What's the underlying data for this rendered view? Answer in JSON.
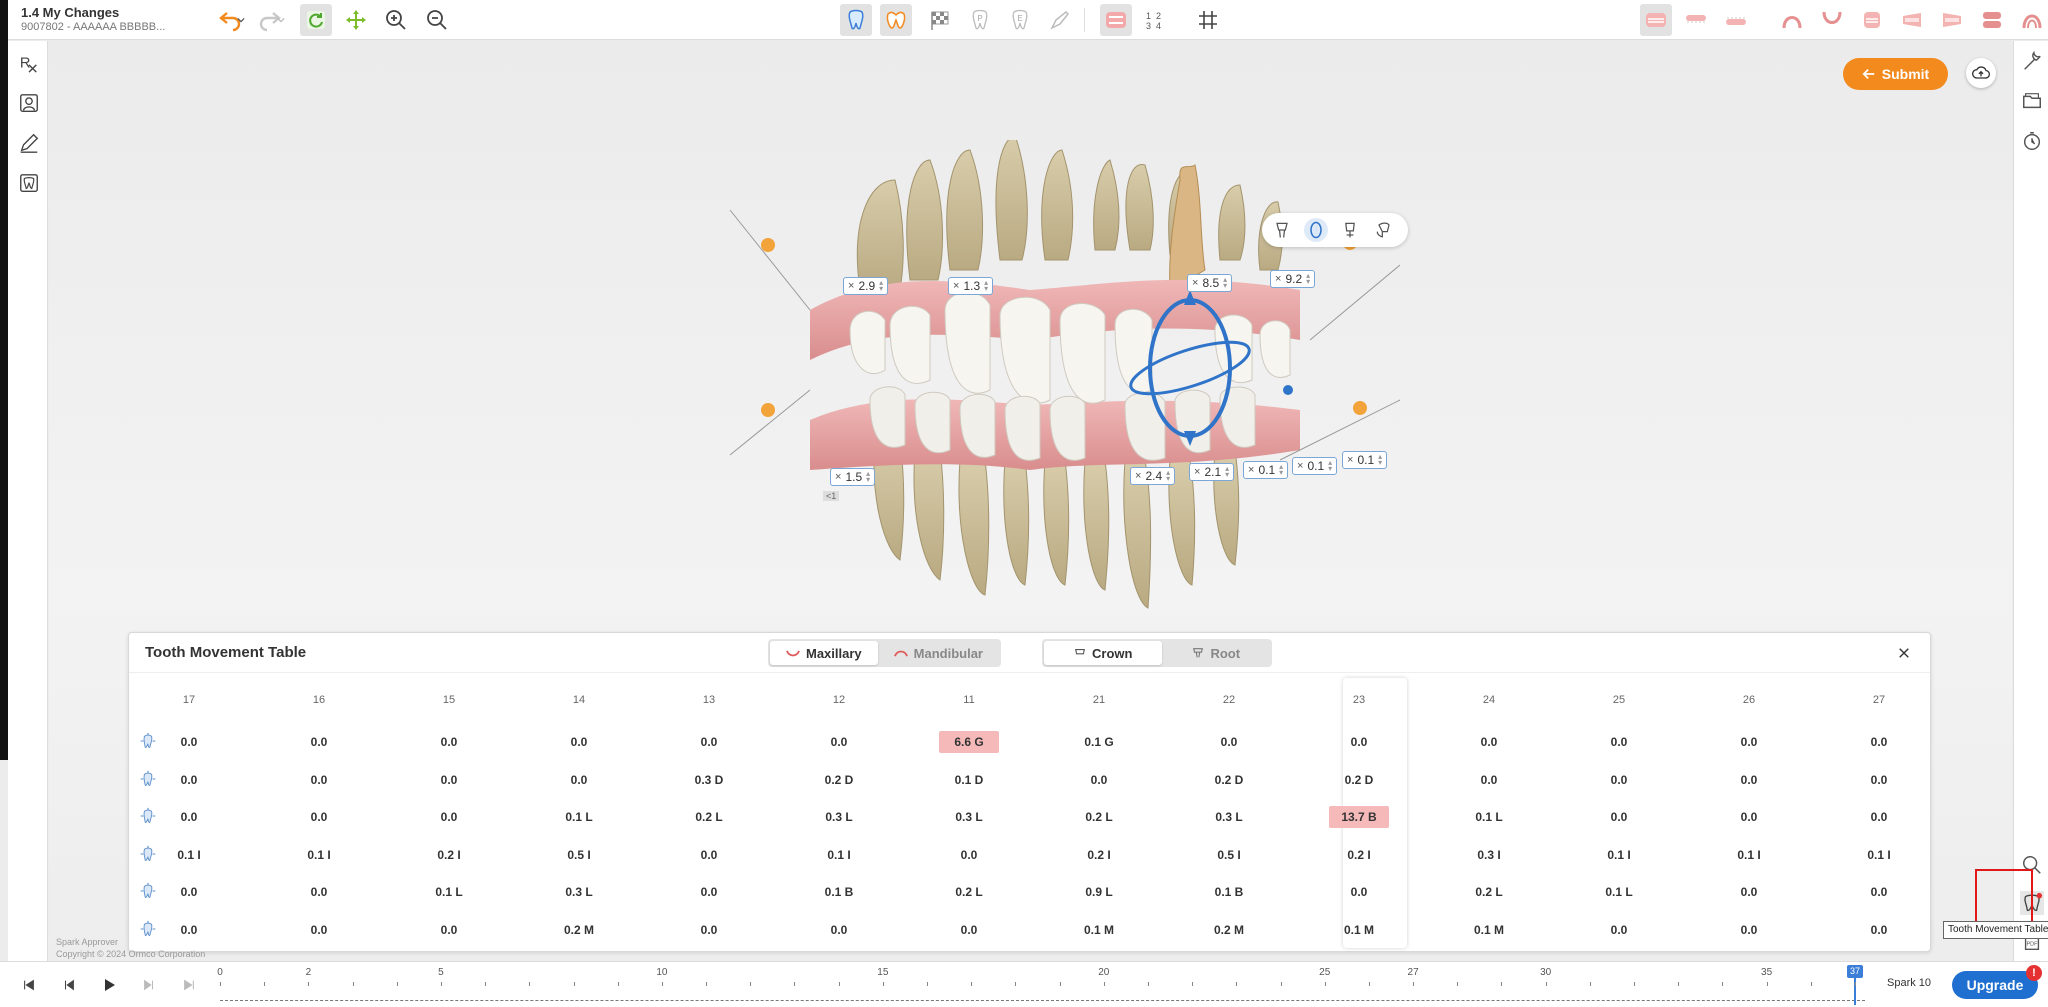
{
  "header": {
    "title": "1.4 My Changes",
    "subtitle": "9007802 - AAAAAA BBBBB..."
  },
  "icons": {
    "undo": "undo-icon",
    "redo": "redo-icon",
    "refresh": "refresh-icon",
    "move": "move-icon",
    "zoom_in": "zoom-in-icon",
    "zoom_out": "zoom-out-icon"
  },
  "viewport": {
    "submit_label": "Submit",
    "measurements": [
      "2.9",
      "1.3",
      "8.5",
      "9.2",
      "1.5",
      "2.4",
      "2.1",
      "0.1",
      "0.1",
      "0.1"
    ],
    "small_label": "<1"
  },
  "table": {
    "title": "Tooth Movement Table",
    "tabs_jaw": [
      "Maxillary",
      "Mandibular"
    ],
    "tabs_part": [
      "Crown",
      "Root"
    ],
    "active_jaw": "Maxillary",
    "active_part": "Crown",
    "highlighted_column": "23",
    "teeth": [
      "17",
      "16",
      "15",
      "14",
      "13",
      "12",
      "11",
      "21",
      "22",
      "23",
      "24",
      "25",
      "26",
      "27"
    ],
    "row_icons": [
      "extrusion-icon",
      "mesial-distal-icon",
      "buccal-lingual-icon",
      "intrusion-icon",
      "tip-icon",
      "rotation-icon"
    ],
    "rows": [
      [
        "0.0",
        "0.0",
        "0.0",
        "0.0",
        "0.0",
        "0.0",
        "6.6 G",
        "0.1 G",
        "0.0",
        "0.0",
        "0.0",
        "0.0",
        "0.0",
        "0.0"
      ],
      [
        "0.0",
        "0.0",
        "0.0",
        "0.0",
        "0.3 D",
        "0.2 D",
        "0.1 D",
        "0.0",
        "0.2 D",
        "0.2 D",
        "0.0",
        "0.0",
        "0.0",
        "0.0"
      ],
      [
        "0.0",
        "0.0",
        "0.0",
        "0.1 L",
        "0.2 L",
        "0.3 L",
        "0.3 L",
        "0.2 L",
        "0.3 L",
        "13.7 B",
        "0.1 L",
        "0.0",
        "0.0",
        "0.0"
      ],
      [
        "0.1 I",
        "0.1 I",
        "0.2 I",
        "0.5 I",
        "0.0",
        "0.1 I",
        "0.0",
        "0.2 I",
        "0.5 I",
        "0.2 I",
        "0.3 I",
        "0.1 I",
        "0.1 I",
        "0.1 I"
      ],
      [
        "0.0",
        "0.0",
        "0.1 L",
        "0.3 L",
        "0.0",
        "0.1 B",
        "0.2 L",
        "0.9 L",
        "0.1 B",
        "0.0",
        "0.2 L",
        "0.1 L",
        "0.0",
        "0.0"
      ],
      [
        "0.0",
        "0.0",
        "0.0",
        "0.2 M",
        "0.0",
        "0.0",
        "0.0",
        "0.1 M",
        "0.2 M",
        "0.1 M",
        "0.1 M",
        "0.0",
        "0.0",
        "0.0"
      ]
    ],
    "highlighted_cells": [
      [
        0,
        6
      ],
      [
        2,
        9
      ]
    ]
  },
  "footer": {
    "line1": "Spark Approver",
    "line2": "Copyright © 2024 Ormco Corporation"
  },
  "timeline": {
    "labels": [
      "0",
      "2",
      "5",
      "10",
      "15",
      "20",
      "25",
      "27",
      "30",
      "35"
    ],
    "current": "37",
    "max_step": 37,
    "product": "Spark 10",
    "upgrade_label": "Upgrade",
    "badge": "!"
  },
  "tooltip": "Tooth Movement Table",
  "colors": {
    "accent_orange": "#f28a1e",
    "accent_blue": "#1e6fd0",
    "highlight_red": "#f6b9b9",
    "annotation_red": "#e01818"
  }
}
